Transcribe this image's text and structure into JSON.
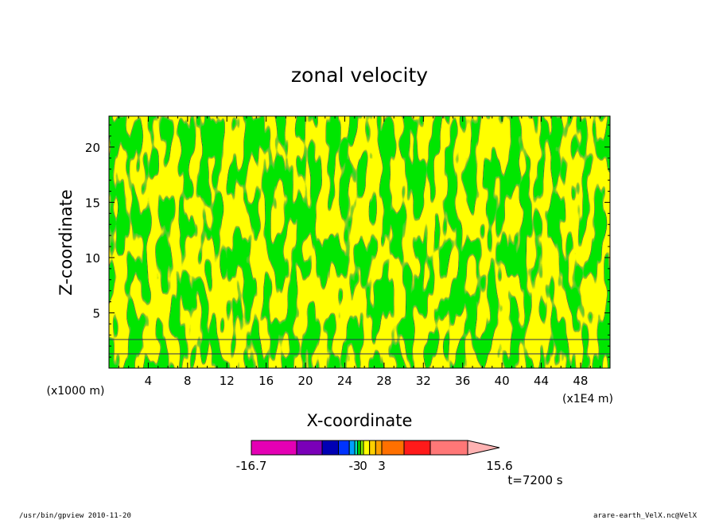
{
  "chart_data": {
    "type": "heatmap",
    "title": "zonal velocity",
    "xlabel": "X-coordinate",
    "ylabel": "Z-coordinate",
    "x_unit_left": "(x1000 m)",
    "x_unit_right": "(x1E4 m)",
    "xlim": [
      0,
      51
    ],
    "ylim": [
      0,
      22.8
    ],
    "x_ticks": [
      4,
      8,
      12,
      16,
      20,
      24,
      28,
      32,
      36,
      40,
      44,
      48
    ],
    "y_ticks": [
      5,
      10,
      15,
      20
    ],
    "fill_colors": {
      "positive": "#ffff00",
      "negative": "#00e600"
    },
    "colorbar": {
      "range": [
        -16.7,
        15.6
      ],
      "labels": [
        "-16.7",
        "-3",
        "0",
        "3",
        "15.6"
      ],
      "label_values": [
        -16.7,
        -3,
        0,
        3,
        15.6
      ],
      "segments": [
        {
          "from": -16.7,
          "to": -12,
          "color": "#e400b4"
        },
        {
          "from": -12,
          "to": -9,
          "color": "#7a00b8"
        },
        {
          "from": -9,
          "to": -6,
          "color": "#0000b4"
        },
        {
          "from": -6,
          "to": -4,
          "color": "#0033ff"
        },
        {
          "from": -4,
          "to": -3,
          "color": "#00a0ff"
        },
        {
          "from": -3,
          "to": -2,
          "color": "#00e0c0"
        },
        {
          "from": -2,
          "to": -1,
          "color": "#00dd00"
        },
        {
          "from": -1,
          "to": 0,
          "color": "#88ee00"
        },
        {
          "from": 0,
          "to": 1,
          "color": "#ffff00"
        },
        {
          "from": 1,
          "to": 2,
          "color": "#ffd000"
        },
        {
          "from": 2,
          "to": 3,
          "color": "#ffa000"
        },
        {
          "from": 3,
          "to": 6,
          "color": "#ff7000"
        },
        {
          "from": 6,
          "to": 9,
          "color": "#ff1a1a"
        },
        {
          "from": 9,
          "to": 12.5,
          "color": "#ff7777"
        },
        {
          "from": 12.5,
          "to": 15.6,
          "color": "#ffb2b2"
        }
      ]
    },
    "time_label": "t=7200 s"
  },
  "footer": {
    "left": "/usr/bin/gpview  2010-11-20",
    "right": "arare-earth_VelX.nc@VelX"
  }
}
